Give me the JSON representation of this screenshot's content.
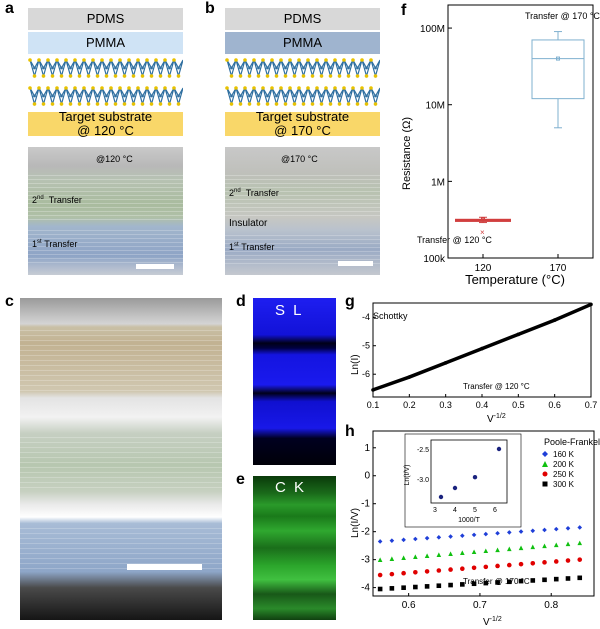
{
  "panels": {
    "a": "a",
    "b": "b",
    "c": "c",
    "d": "d",
    "e": "e",
    "f": "f",
    "g": "g",
    "h": "h"
  },
  "a": {
    "pdms": "PDMS",
    "pmma": "PMMA",
    "substrate_line1": "Target substrate",
    "substrate_line2": "@ 120 °C",
    "tem_temp": "@120 °C",
    "second_sup": "nd",
    "second": "2",
    "second_rest": "Transfer",
    "first_sup": "st",
    "first": "1",
    "first_rest": "Transfer"
  },
  "b": {
    "pdms": "PDMS",
    "pmma": "PMMA",
    "substrate_line1": "Target substrate",
    "substrate_line2": "@ 170 °C",
    "tem_temp": "@170 °C",
    "second": "2",
    "second_sup": "nd",
    "second_rest": "Transfer",
    "insulator": "Insulator",
    "first": "1",
    "first_sup": "st",
    "first_rest": "Transfer"
  },
  "d": {
    "label": "S L"
  },
  "e": {
    "label": "C K"
  },
  "colors": {
    "pdms": "#d8d8d8",
    "pmma_a": "#cfe3f5",
    "pmma_b": "#9fb4cf",
    "substrate": "#f9d769",
    "mos2_blue": "#2f6fa0",
    "mos2_yellow": "#e8c200",
    "s_map": "#1515e0",
    "c_map": "#20c020",
    "box": "#7fb0cf",
    "red": "#e00000"
  },
  "chart_data": [
    {
      "id": "f",
      "type": "box",
      "ylabel": "Resistance (Ω)",
      "xlabel": "Temperature (°C)",
      "yscale": "log",
      "ylim": [
        100000,
        200000000
      ],
      "yticks": [
        "100k",
        "1M",
        "10M",
        "100M"
      ],
      "categories": [
        "120",
        "170"
      ],
      "boxes": [
        {
          "category": "120",
          "min": 290000,
          "q1": 300000,
          "median": 310000,
          "q3": 320000,
          "max": 340000,
          "mean": 320000,
          "outlier": 220000,
          "annotation": "Transfer  @ 120 °C"
        },
        {
          "category": "170",
          "min": 5000000,
          "q1": 12000000,
          "median": 40000000,
          "q3": 70000000,
          "max": 90000000,
          "mean": 40000000,
          "annotation": "Transfer @ 170 °C"
        }
      ]
    },
    {
      "id": "g",
      "type": "line",
      "title": "Schottky",
      "xlabel": "V",
      "xlabel_sup": "-1/2",
      "ylabel": "Ln(I)",
      "xlim": [
        0.1,
        0.7
      ],
      "ylim": [
        -6.8,
        -3.5
      ],
      "xticks": [
        "0.1",
        "0.2",
        "0.3",
        "0.4",
        "0.5",
        "0.6",
        "0.7"
      ],
      "yticks": [
        "-6",
        "-5",
        "-4"
      ],
      "x": [
        0.1,
        0.2,
        0.3,
        0.4,
        0.5,
        0.6,
        0.7
      ],
      "y": [
        -6.55,
        -6.1,
        -5.6,
        -5.1,
        -4.6,
        -4.1,
        -3.55
      ],
      "annotation": "Transfer @ 120 °C"
    },
    {
      "id": "h",
      "type": "scatter",
      "title": "Poole-Frankel",
      "xlabel": "V",
      "xlabel_sup": "-1/2",
      "ylabel": "Ln(I/V)",
      "xlim": [
        0.55,
        0.86
      ],
      "ylim": [
        -4.3,
        1.6
      ],
      "xticks": [
        "0.6",
        "0.7",
        "0.8"
      ],
      "yticks": [
        "-4",
        "-3",
        "-2",
        "-1",
        "0",
        "1"
      ],
      "series": [
        {
          "name": "160 K",
          "color": "#1f3fd8",
          "marker": "diamond",
          "y0": -2.35,
          "y1": -1.85
        },
        {
          "name": "200 K",
          "color": "#10c010",
          "marker": "triangle",
          "y0": -3.0,
          "y1": -2.4
        },
        {
          "name": "250 K",
          "color": "#e00000",
          "marker": "circle",
          "y0": -3.55,
          "y1": -3.0
        },
        {
          "name": "300 K",
          "color": "#000000",
          "marker": "square",
          "y0": -4.05,
          "y1": -3.65
        }
      ],
      "annotation": "Transfer @ 170 °C",
      "inset": {
        "xlabel": "1000/T",
        "ylabel": "Ln(I/V)",
        "x": [
          3.3,
          4.0,
          5.0,
          6.2
        ],
        "y": [
          -3.3,
          -3.15,
          -2.97,
          -2.5
        ],
        "xticks": [
          "3",
          "4",
          "5",
          "6"
        ],
        "yticks": [
          "-3.0",
          "-2.5"
        ],
        "xlim": [
          2.8,
          6.6
        ],
        "ylim": [
          -3.4,
          -2.35
        ]
      }
    }
  ]
}
